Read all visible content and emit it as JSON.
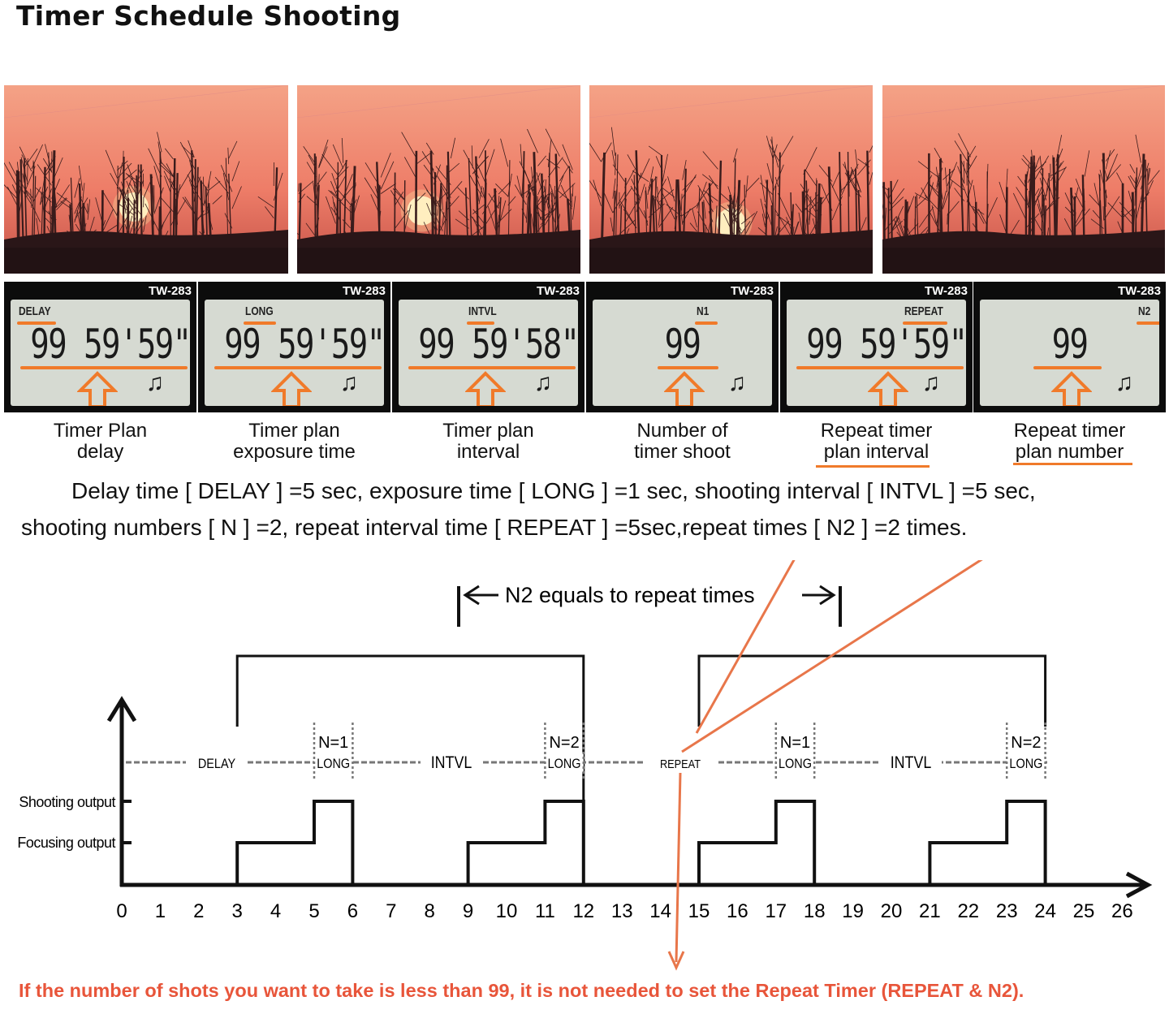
{
  "title": "Timer Schedule Shooting",
  "photos": [
    {
      "sun_visible": 1.0
    },
    {
      "sun_visible": 0.85
    },
    {
      "sun_visible": 0.35
    },
    {
      "sun_visible": 0.0
    }
  ],
  "panels": [
    {
      "model": "TW-283",
      "mode": "DELAY",
      "value": "99 59'59\"",
      "caption": [
        "Timer Plan",
        "delay"
      ]
    },
    {
      "model": "TW-283",
      "mode": "LONG",
      "value": "99 59'59\"",
      "caption": [
        "Timer plan",
        "exposure time"
      ]
    },
    {
      "model": "TW-283",
      "mode": "INTVL",
      "value": "99 59'58\"",
      "caption": [
        "Timer plan",
        "interval"
      ]
    },
    {
      "model": "TW-283",
      "mode": "N1",
      "value": "99",
      "caption": [
        "Number of",
        "timer shoot"
      ]
    },
    {
      "model": "TW-283",
      "mode": "REPEAT",
      "value": "99 59'59\"",
      "caption": [
        "Repeat timer",
        "plan interval"
      ]
    },
    {
      "model": "TW-283",
      "mode": "N2",
      "value": "99",
      "caption": [
        "Repeat timer",
        "plan number"
      ]
    }
  ],
  "paragraph": [
    "Delay time [ DELAY ] =5 sec, exposure time [ LONG ] =1 sec, shooting interval [ INTVL ] =5 sec,",
    "shooting numbers [ N ] =2, repeat interval time [ REPEAT ] =5sec,repeat times [ N2 ] =2 times."
  ],
  "diagram": {
    "n2_label": "N2 equals to repeat times",
    "y_labels": {
      "shooting": "Shooting output",
      "focusing": "Focusing output"
    },
    "phase_labels": [
      "DELAY",
      "INTVL",
      "REPEAT",
      "INTVL"
    ],
    "shot_boxes": [
      {
        "n": "N=1",
        "long": "LONG"
      },
      {
        "n": "N=2",
        "long": "LONG"
      },
      {
        "n": "N=1",
        "long": "LONG"
      },
      {
        "n": "N=2",
        "long": "LONG"
      }
    ],
    "x_ticks": [
      "0",
      "1",
      "2",
      "3",
      "4",
      "5",
      "6",
      "7",
      "8",
      "9",
      "10",
      "11",
      "12",
      "13",
      "14",
      "15",
      "16",
      "17",
      "18",
      "19",
      "20",
      "21",
      "22",
      "23",
      "24",
      "25",
      "26"
    ],
    "cycles": [
      {
        "focus_start": 3,
        "shoot_start": 5,
        "end": 6
      },
      {
        "focus_start": 9,
        "shoot_start": 11,
        "end": 12
      },
      {
        "focus_start": 15,
        "shoot_start": 17,
        "end": 18
      },
      {
        "focus_start": 21,
        "shoot_start": 23,
        "end": 24
      }
    ],
    "repeat_groups": [
      [
        3,
        12
      ],
      [
        15,
        24
      ]
    ]
  },
  "footnote": "If the number of shots you want to take is less than 99, it is not needed to set the Repeat Timer (REPEAT & N2).",
  "colors": {
    "accent": "#f07a2a",
    "footnote": "#e8553a",
    "lcd": "#d6dad2"
  }
}
